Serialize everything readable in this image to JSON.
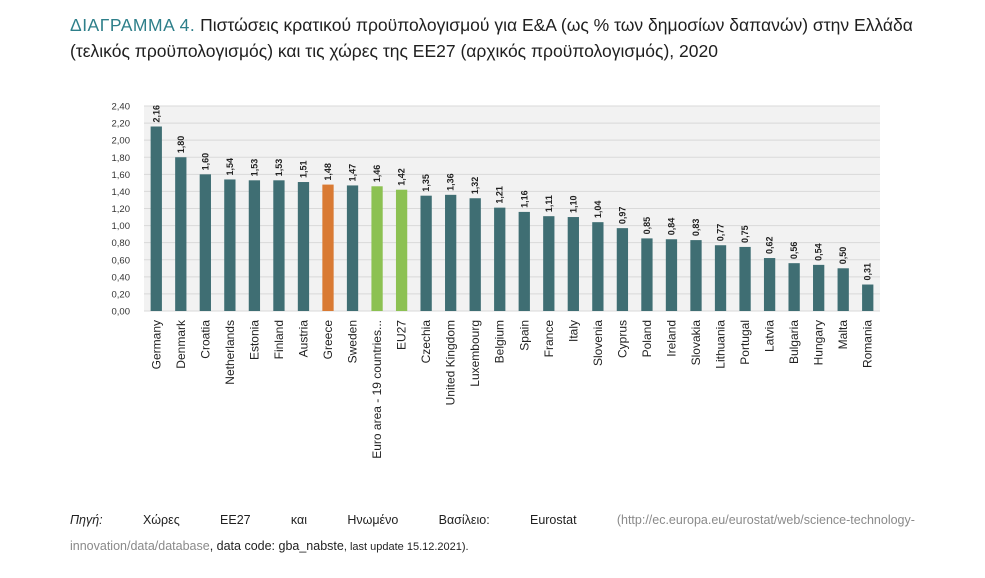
{
  "header": {
    "label": "ΔΙΑΓΡΑΜΜΑ 4.",
    "text": "Πιστώσεις κρατικού προϋπολογισμού για Ε&Α (ως % των δημοσίων δαπανών) στην Ελλάδα (τελικός προϋπολογισμός) και τις χώρες της ΕΕ27 (αρχικός προϋπολογισμός), 2020"
  },
  "chart_data": {
    "type": "bar",
    "title": "",
    "xlabel": "",
    "ylabel": "",
    "ylim": [
      0,
      2.4
    ],
    "yticks": [
      "0,00",
      "0,20",
      "0,40",
      "0,60",
      "0,80",
      "1,00",
      "1,20",
      "1,40",
      "1,60",
      "1,80",
      "2,00",
      "2,20",
      "2,40"
    ],
    "grid": true,
    "categories": [
      "Germany",
      "Denmark",
      "Croatia",
      "Netherlands",
      "Estonia",
      "Finland",
      "Austria",
      "Greece",
      "Sweden",
      "Euro area - 19 countries...",
      "EU27",
      "Czechia",
      "United Kingdom",
      "Luxembourg",
      "Belgium",
      "Spain",
      "France",
      "Italy",
      "Slovenia",
      "Cyprus",
      "Poland",
      "Ireland",
      "Slovakia",
      "Lithuania",
      "Portugal",
      "Latvia",
      "Bulgaria",
      "Hungary",
      "Malta",
      "Romania"
    ],
    "values": [
      2.16,
      1.8,
      1.6,
      1.54,
      1.53,
      1.53,
      1.51,
      1.48,
      1.47,
      1.46,
      1.42,
      1.35,
      1.36,
      1.32,
      1.21,
      1.16,
      1.11,
      1.1,
      1.04,
      0.97,
      0.85,
      0.84,
      0.83,
      0.77,
      0.75,
      0.62,
      0.56,
      0.54,
      0.5,
      0.31
    ],
    "value_labels": [
      "2,16",
      "1,80",
      "1,60",
      "1,54",
      "1,53",
      "1,53",
      "1,51",
      "1,48",
      "1,47",
      "1,46",
      "1,42",
      "1,35",
      "1,36",
      "1,32",
      "1,21",
      "1,16",
      "1,11",
      "1,10",
      "1,04",
      "0,97",
      "0,85",
      "0,84",
      "0,83",
      "0,77",
      "0,75",
      "0,62",
      "0,56",
      "0,54",
      "0,50",
      "0,31"
    ],
    "colors": {
      "default": "#3f6e73",
      "Greece": "#d97a33",
      "Euro area - 19 countries...": "#8cc152",
      "EU27": "#8cc152",
      "grid": "#d9d9d9",
      "plot_bg": "#f2f2f2"
    }
  },
  "source": {
    "label": "Πηγή:",
    "words": [
      "Χώρες",
      "ΕΕ27",
      "και",
      "Ηνωμένο",
      "Βασίλειο:",
      "Eurostat"
    ],
    "url_start": "(http://ec.europa.eu/eurostat/web/science-technology-",
    "url_end": "innovation/data/database",
    "data_code": ", data code: gba_nabste",
    "last_update": ", last update 15.12.2021)."
  }
}
